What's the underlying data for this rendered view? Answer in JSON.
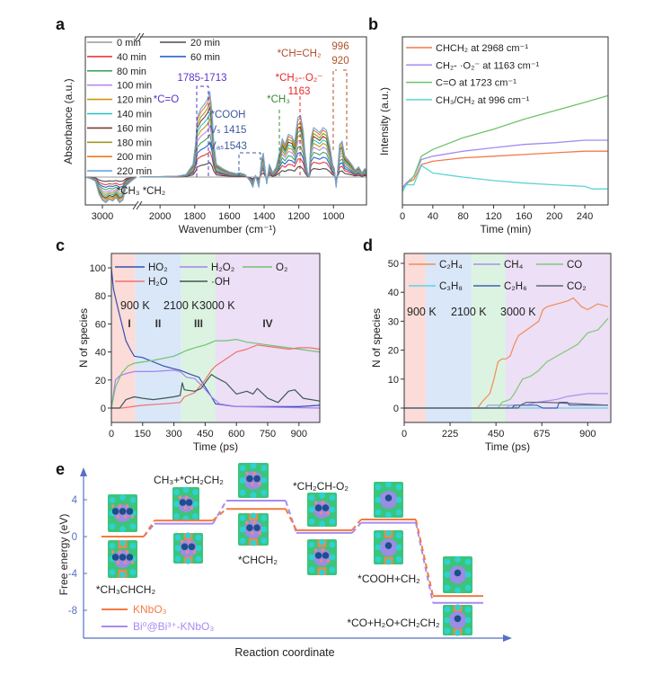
{
  "figure": {
    "panel_labels": [
      "a",
      "b",
      "c",
      "d",
      "e"
    ]
  },
  "chart_data": [
    {
      "panel": "a",
      "type": "line",
      "xlabel": "Wavenumber (cm⁻¹)",
      "ylabel": "Absorbance (a.u.)",
      "x_ticks": [
        "3000",
        "2000",
        "1800",
        "1600",
        "1400",
        "1200",
        "1000"
      ],
      "x_tick_values": [
        3000,
        2000,
        1800,
        1600,
        1400,
        1200,
        1000
      ],
      "x_axis_break": true,
      "xlim_segments": [
        [
          3150,
          2700
        ],
        [
          2120,
          810
        ]
      ],
      "y_ticks": false,
      "legend_placement": "top-left",
      "series": [
        {
          "name": "0 min",
          "color": "#9a9a9a",
          "peak_1713": 0
        },
        {
          "name": "20 min",
          "color": "#4a4a4a",
          "peak_1713": 0.17
        },
        {
          "name": "40 min",
          "color": "#e83a3a",
          "peak_1713": 0.3
        },
        {
          "name": "60 min",
          "color": "#2a62d0",
          "peak_1713": 0.4
        },
        {
          "name": "80 min",
          "color": "#3aa862",
          "peak_1713": 0.5
        },
        {
          "name": "100 min",
          "color": "#b88ae8",
          "peak_1713": 0.6
        },
        {
          "name": "120 min",
          "color": "#c89a10",
          "peak_1713": 0.68
        },
        {
          "name": "140 min",
          "color": "#22c6c6",
          "peak_1713": 0.75
        },
        {
          "name": "160 min",
          "color": "#7a3e34",
          "peak_1713": 0.82
        },
        {
          "name": "180 min",
          "color": "#9a9a22",
          "peak_1713": 0.88
        },
        {
          "name": "200 min",
          "color": "#f07a22",
          "peak_1713": 0.95
        },
        {
          "name": "220 min",
          "color": "#6aa6e2",
          "peak_1713": 1.0,
          "x": [
            3150,
            3100,
            3060,
            3030,
            3000,
            2970,
            2940,
            2910,
            2880,
            2850,
            2820,
            2790,
            2750,
            2700,
            2120,
            1900,
            1850,
            1810,
            1795,
            1785,
            1765,
            1745,
            1725,
            1713,
            1700,
            1690,
            1675,
            1640,
            1600,
            1560,
            1540,
            1510,
            1480,
            1465,
            1450,
            1430,
            1415,
            1405,
            1395,
            1385,
            1370,
            1350,
            1330,
            1310,
            1295,
            1280,
            1260,
            1240,
            1225,
            1205,
            1190,
            1175,
            1165,
            1150,
            1140,
            1130,
            1115,
            1095,
            1080,
            1060,
            1040,
            1020,
            1005,
            995,
            985,
            975,
            965,
            950,
            935,
            915,
            895,
            875,
            855,
            835,
            820,
            810
          ],
          "y": [
            0,
            -0.02,
            -0.05,
            -0.2,
            -0.27,
            -0.3,
            -0.26,
            -0.28,
            -0.24,
            -0.3,
            -0.27,
            -0.1,
            -0.05,
            0,
            0,
            0.01,
            0.03,
            0.15,
            0.4,
            0.7,
            0.8,
            0.85,
            0.92,
            1.0,
            0.75,
            0.4,
            0.15,
            0.1,
            0.06,
            0.04,
            0.05,
            0.03,
            -0.05,
            -0.12,
            0.02,
            -0.12,
            0.2,
            0.28,
            0.1,
            -0.08,
            0.15,
            0.05,
            0.12,
            0.3,
            0.45,
            0.38,
            0.5,
            0.48,
            0.4,
            0.7,
            0.72,
            0.55,
            0.3,
            0.05,
            0.0,
            0.45,
            0.58,
            0.55,
            0.52,
            0.58,
            0.55,
            0.35,
            0.15,
            0.1,
            -0.12,
            0.1,
            0.38,
            0.42,
            0.25,
            0.2,
            0.15,
            0.08,
            0.12,
            0.05,
            0.1,
            0.08
          ]
        }
      ],
      "annotations": [
        {
          "text": "1785-1713",
          "color": "#5a34c8"
        },
        {
          "text": "*C=O",
          "color": "#5a34c8"
        },
        {
          "text": "*COOH",
          "color": "#3c5a9e"
        },
        {
          "text": "Vₛ 1415",
          "color": "#3c5a9e"
        },
        {
          "text": "Vₐₛ1543",
          "color": "#3c5a9e"
        },
        {
          "text": "*CH₃",
          "color": "#3a8a3a"
        },
        {
          "text": "*CH₂-·O₂⁻",
          "color": "#e82828"
        },
        {
          "text": "1163",
          "color": "#e82828"
        },
        {
          "text": "*CH=CH₂",
          "color": "#b0502a"
        },
        {
          "text": "996",
          "color": "#b0502a"
        },
        {
          "text": "920",
          "color": "#b0502a"
        },
        {
          "text": "*CH₃  *CH₂",
          "color": "#222222"
        }
      ]
    },
    {
      "panel": "b",
      "type": "line",
      "xlabel": "Time (min)",
      "ylabel": "Intensity (a.u.)",
      "x_ticks": [
        "0",
        "40",
        "80",
        "120",
        "160",
        "200",
        "240"
      ],
      "xlim": [
        0,
        270
      ],
      "y_ticks": false,
      "legend_placement": "top-left",
      "series": [
        {
          "name": "CHCH₂ at 2968 cm⁻¹",
          "color": "#f4794a",
          "x": [
            0,
            5,
            15,
            25,
            40,
            80,
            120,
            160,
            200,
            240,
            270
          ],
          "y": [
            0.1,
            0.13,
            0.15,
            0.24,
            0.26,
            0.28,
            0.29,
            0.3,
            0.31,
            0.32,
            0.32
          ]
        },
        {
          "name": "CH₂- ·O₂⁻ at 1163 cm⁻¹",
          "color": "#a48cf0",
          "x": [
            0,
            5,
            15,
            25,
            40,
            80,
            120,
            160,
            200,
            240,
            270
          ],
          "y": [
            0.1,
            0.13,
            0.17,
            0.27,
            0.29,
            0.32,
            0.34,
            0.36,
            0.37,
            0.385,
            0.385
          ]
        },
        {
          "name": "C=O at 1723 cm⁻¹",
          "color": "#6cc46c",
          "x": [
            0,
            5,
            15,
            25,
            40,
            80,
            120,
            160,
            200,
            240,
            270
          ],
          "y": [
            0.08,
            0.12,
            0.17,
            0.29,
            0.33,
            0.4,
            0.45,
            0.51,
            0.56,
            0.61,
            0.65
          ]
        },
        {
          "name": "CH₃/CH₂ at 996 cm⁻¹",
          "color": "#5cd4d4",
          "x": [
            0,
            5,
            15,
            25,
            40,
            80,
            120,
            160,
            200,
            240,
            250,
            270
          ],
          "y": [
            0.08,
            0.12,
            0.12,
            0.235,
            0.19,
            0.165,
            0.145,
            0.13,
            0.12,
            0.11,
            0.095,
            0.095
          ]
        }
      ]
    },
    {
      "panel": "c",
      "type": "line",
      "xlabel": "Time (ps)",
      "ylabel": "N of species",
      "x_ticks": [
        0,
        150,
        300,
        450,
        600,
        750,
        900
      ],
      "y_ticks": [
        0,
        20,
        40,
        60,
        80,
        100
      ],
      "xlim": [
        0,
        1000
      ],
      "ylim": [
        -10,
        110
      ],
      "legend_placement": "top",
      "regions": [
        {
          "label": "I",
          "start": 0,
          "end": 115,
          "color": "#fbdcd8"
        },
        {
          "label": "II",
          "start": 115,
          "end": 335,
          "color": "#d9e7f9"
        },
        {
          "label": "III",
          "start": 335,
          "end": 500,
          "color": "#dcf3e2"
        },
        {
          "label": "IV",
          "start": 500,
          "end": 1000,
          "color": "#ecdff6"
        }
      ],
      "temperatures": [
        "900 K",
        "2100 K",
        "3000 K"
      ],
      "series": [
        {
          "name": "HO₂",
          "color": "#3350b2",
          "x": [
            0,
            10,
            30,
            50,
            70,
            90,
            110,
            150,
            200,
            250,
            300,
            330,
            380,
            420,
            450,
            480,
            500,
            550,
            600,
            700,
            800,
            900,
            1000
          ],
          "y": [
            100,
            85,
            72,
            60,
            48,
            42,
            37,
            36,
            33,
            30,
            28,
            27,
            24,
            22,
            15,
            8,
            3,
            2,
            1,
            1,
            1,
            1,
            2
          ]
        },
        {
          "name": "H₂O₂",
          "color": "#a880f0",
          "x": [
            0,
            20,
            40,
            80,
            110,
            200,
            300,
            330,
            360,
            400,
            440,
            480,
            520,
            600,
            1000
          ],
          "y": [
            0,
            20,
            23,
            25,
            26,
            26,
            27,
            26,
            22,
            21,
            15,
            8,
            3,
            1,
            0
          ]
        },
        {
          "name": "O₂",
          "color": "#72c272",
          "x": [
            0,
            20,
            50,
            80,
            110,
            200,
            300,
            330,
            360,
            400,
            450,
            500,
            550,
            600,
            650,
            700,
            750,
            800,
            900,
            1000
          ],
          "y": [
            0,
            15,
            25,
            30,
            32,
            34,
            37,
            39,
            41,
            43,
            45,
            48,
            48,
            49,
            47,
            46,
            45,
            44,
            42,
            40
          ]
        },
        {
          "name": "H₂O",
          "color": "#f27070",
          "x": [
            0,
            50,
            100,
            150,
            250,
            330,
            350,
            400,
            450,
            480,
            500,
            550,
            600,
            650,
            700,
            750,
            800,
            850,
            900,
            950,
            1000
          ],
          "y": [
            0,
            0,
            1,
            2,
            3,
            4,
            8,
            11,
            20,
            27,
            30,
            35,
            40,
            42,
            45,
            44,
            43,
            42,
            43,
            43,
            42
          ]
        },
        {
          "name": "·OH",
          "color": "#3f5858",
          "x": [
            0,
            40,
            70,
            110,
            150,
            200,
            250,
            300,
            330,
            340,
            350,
            400,
            430,
            460,
            480,
            500,
            550,
            600,
            650,
            680,
            700,
            750,
            800,
            850,
            880,
            920,
            1000
          ],
          "y": [
            0,
            0,
            6,
            8,
            7,
            6,
            7,
            8,
            9,
            18,
            13,
            12,
            14,
            20,
            24,
            22,
            18,
            10,
            12,
            10,
            14,
            7,
            4,
            12,
            13,
            7,
            5
          ]
        }
      ]
    },
    {
      "panel": "d",
      "type": "line",
      "xlabel": "Time (ps)",
      "ylabel": "N of species",
      "x_ticks": [
        0,
        225,
        450,
        675,
        900
      ],
      "y_ticks": [
        0,
        10,
        20,
        30,
        40,
        50
      ],
      "xlim": [
        0,
        1010
      ],
      "ylim": [
        -5,
        53.5
      ],
      "legend_placement": "top",
      "regions": [
        {
          "start": 0,
          "end": 106,
          "color": "#fbdcd8"
        },
        {
          "start": 106,
          "end": 331,
          "color": "#d9e7f9"
        },
        {
          "start": 331,
          "end": 498,
          "color": "#dcf3e2"
        },
        {
          "start": 498,
          "end": 1010,
          "color": "#ecdff6"
        }
      ],
      "temperatures": [
        "900 K",
        "2100 K",
        "3000 K"
      ],
      "series": [
        {
          "name": "C₂H₄",
          "color": "#f48a55",
          "x": [
            0,
            360,
            380,
            420,
            440,
            460,
            480,
            500,
            520,
            540,
            560,
            600,
            640,
            660,
            680,
            700,
            750,
            800,
            830,
            870,
            900,
            950,
            1000
          ],
          "y": [
            0,
            0,
            2,
            5,
            10,
            16,
            17,
            17,
            18,
            22,
            25,
            27,
            29,
            30,
            34,
            35,
            36,
            37,
            38,
            35,
            34,
            36,
            35
          ]
        },
        {
          "name": "CH₄",
          "color": "#a890f0",
          "x": [
            0,
            400,
            410,
            600,
            650,
            750,
            800,
            900,
            1000
          ],
          "y": [
            0,
            0,
            1,
            1,
            2,
            3,
            4,
            5,
            5
          ]
        },
        {
          "name": "CO",
          "color": "#82c872",
          "x": [
            0,
            460,
            480,
            520,
            540,
            580,
            620,
            660,
            700,
            750,
            800,
            850,
            900,
            950,
            1000
          ],
          "y": [
            0,
            0,
            2,
            3,
            5,
            10,
            11,
            13,
            16,
            18,
            20,
            22,
            26,
            27,
            31
          ]
        },
        {
          "name": "C₃H₈",
          "color": "#62d2e2",
          "x": [
            0,
            500,
            520,
            560,
            1000
          ],
          "y": [
            0,
            0,
            1,
            0,
            0
          ]
        },
        {
          "name": "C₂H₆",
          "color": "#4262b2",
          "x": [
            0,
            530,
            540,
            650,
            680,
            750,
            760,
            800,
            810,
            1000
          ],
          "y": [
            0,
            0,
            1,
            1,
            0,
            0,
            2,
            2,
            1,
            1
          ]
        },
        {
          "name": "CO₂",
          "color": "#5e6670",
          "x": [
            0,
            560,
            570,
            600,
            700,
            1000
          ],
          "y": [
            0,
            0,
            1,
            2,
            2,
            1
          ]
        }
      ]
    },
    {
      "panel": "e",
      "type": "line",
      "xlabel": "Reaction coordinate",
      "ylabel": "Free energy (eV)",
      "y_ticks": [
        4,
        0,
        -4,
        -8
      ],
      "legend_placement": "bottom-left",
      "series": [
        {
          "name": "KNbO₃",
          "color": "#f47a42",
          "y": [
            0,
            1.75,
            3.0,
            0.7,
            1.85,
            -6.45
          ]
        },
        {
          "name": "Bi⁰@Bi³⁺-KNbO₃",
          "color": "#a88cf0",
          "y": [
            0,
            1.4,
            3.9,
            0.4,
            1.5,
            -7.2
          ]
        }
      ],
      "states": [
        "*CH₃CHCH₂",
        "CH₃+*CH₂CH₂",
        "*CHCH₂",
        "*CH₂CH-O₂",
        "*COOH+CH₂",
        "*CO+H₂O+CH₂CH₂"
      ],
      "axis_color": "#5572c2"
    }
  ]
}
